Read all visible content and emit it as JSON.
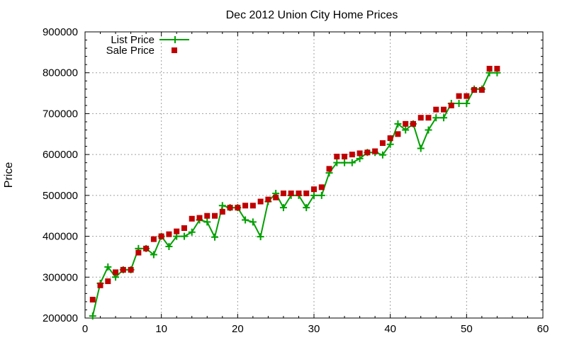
{
  "chart_data": {
    "type": "line",
    "title": "Dec 2012 Union City Home Prices",
    "xlabel": "",
    "ylabel": "Price",
    "xlim": [
      0,
      60
    ],
    "ylim": [
      200000,
      900000
    ],
    "xticks": [
      0,
      10,
      20,
      30,
      40,
      50,
      60
    ],
    "yticks": [
      200000,
      300000,
      400000,
      500000,
      600000,
      700000,
      800000,
      900000
    ],
    "xtick_labels": [
      "0",
      "10",
      "20",
      "30",
      "40",
      "50",
      "60"
    ],
    "ytick_labels": [
      "200000",
      "300000",
      "400000",
      "500000",
      "600000",
      "700000",
      "800000",
      "900000"
    ],
    "grid": true,
    "legend_position": "top-left",
    "series": [
      {
        "name": "List Price",
        "style": "line-with-plus-markers",
        "color": "#00a000",
        "x": [
          1,
          2,
          3,
          4,
          5,
          6,
          7,
          8,
          9,
          10,
          11,
          12,
          13,
          14,
          15,
          16,
          17,
          18,
          19,
          20,
          21,
          22,
          23,
          24,
          25,
          26,
          27,
          28,
          29,
          30,
          31,
          32,
          33,
          34,
          35,
          36,
          37,
          38,
          39,
          40,
          41,
          42,
          43,
          44,
          45,
          46,
          47,
          48,
          49,
          50,
          51,
          52,
          53,
          54
        ],
        "y": [
          205000,
          285000,
          325000,
          300000,
          318000,
          318000,
          370000,
          370000,
          355000,
          400000,
          375000,
          400000,
          400000,
          410000,
          440000,
          435000,
          398000,
          475000,
          470000,
          470000,
          440000,
          435000,
          399000,
          485000,
          505000,
          470000,
          500000,
          500000,
          470000,
          500000,
          500000,
          555000,
          580000,
          580000,
          580000,
          590000,
          605000,
          605000,
          599000,
          625000,
          675000,
          660000,
          675000,
          615000,
          660000,
          690000,
          690000,
          725000,
          725000,
          725000,
          760000,
          760000,
          800000,
          800000
        ]
      },
      {
        "name": "Sale Price",
        "style": "square-markers",
        "color": "#c00000",
        "x": [
          1,
          2,
          3,
          4,
          5,
          6,
          7,
          8,
          9,
          10,
          11,
          12,
          13,
          14,
          15,
          16,
          17,
          18,
          19,
          20,
          21,
          22,
          23,
          24,
          25,
          26,
          27,
          28,
          29,
          30,
          31,
          32,
          33,
          34,
          35,
          36,
          37,
          38,
          39,
          40,
          41,
          42,
          43,
          44,
          45,
          46,
          47,
          48,
          49,
          50,
          51,
          52,
          53,
          54
        ],
        "y": [
          245000,
          280000,
          290000,
          312000,
          318000,
          318000,
          360000,
          370000,
          393000,
          400000,
          405000,
          412000,
          420000,
          443000,
          445000,
          450000,
          450000,
          460000,
          470000,
          470000,
          475000,
          475000,
          485000,
          490000,
          495000,
          505000,
          505000,
          505000,
          505000,
          515000,
          520000,
          565000,
          595000,
          595000,
          600000,
          603000,
          605000,
          608000,
          628000,
          640000,
          650000,
          675000,
          675000,
          690000,
          690000,
          710000,
          710000,
          720000,
          743000,
          743000,
          758000,
          758000,
          810000,
          810000
        ]
      }
    ]
  }
}
